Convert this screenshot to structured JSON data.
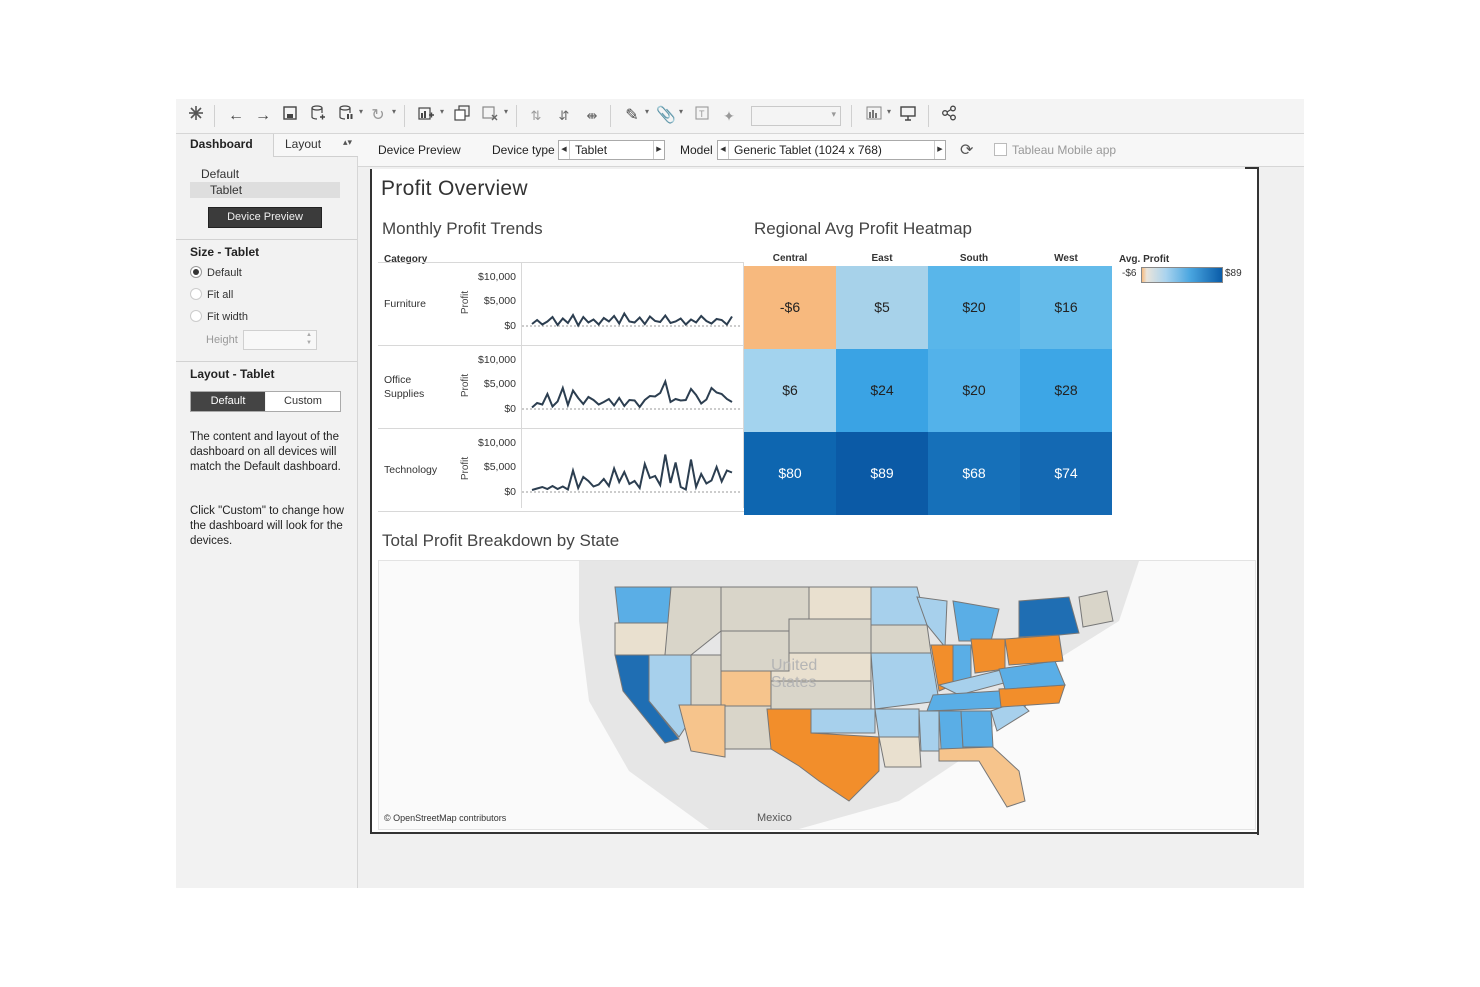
{
  "toolbar": {
    "icons": [
      "tableau-logo-icon",
      "undo-icon",
      "redo-icon",
      "save-icon",
      "new-datasource-icon",
      "pause-icon",
      "refresh-icon",
      "new-worksheet-icon",
      "duplicate-icon",
      "clear-icon",
      "swap-icon",
      "sort-asc-icon",
      "sort-desc-icon",
      "highlight-icon",
      "group-icon",
      "label-icon",
      "pin-icon",
      "fit-combo",
      "show-me-icon",
      "presentation-icon",
      "share-icon"
    ]
  },
  "left_panel": {
    "tabs": {
      "dashboard": "Dashboard",
      "layout": "Layout"
    },
    "devices": {
      "default": "Default",
      "tablet": "Tablet"
    },
    "device_preview_button": "Device Preview",
    "size_title": "Size - Tablet",
    "size_options": [
      "Default",
      "Fit all",
      "Fit width"
    ],
    "size_selected": "Default",
    "height_label": "Height",
    "layout_title": "Layout - Tablet",
    "layout_buttons": {
      "default": "Default",
      "custom": "Custom"
    },
    "help_1": "The content and layout of the dashboard on all devices will match the Default dashboard.",
    "help_2": "Click \"Custom\" to change how the dashboard will look for the devices."
  },
  "device_bar": {
    "title": "Device Preview",
    "device_type_label": "Device type",
    "device_type_value": "Tablet",
    "model_label": "Model",
    "model_value": "Generic Tablet (1024 x 768)",
    "mobile_app_label": "Tableau Mobile app",
    "mobile_app_checked": false
  },
  "dashboard": {
    "title": "Profit Overview",
    "trends_title": "Monthly Profit Trends",
    "heatmap_title": "Regional Avg Profit Heatmap",
    "map_title": "Total Profit Breakdown by State"
  },
  "chart_data": [
    {
      "type": "line",
      "title": "Monthly Profit Trends",
      "row_header": "Category",
      "ylabel": "Profit",
      "y_ticks": [
        "$10,000",
        "$5,000",
        "$0"
      ],
      "ylim": [
        0,
        10000
      ],
      "series": [
        {
          "name": "Furniture",
          "values": [
            400,
            1200,
            300,
            900,
            1800,
            200,
            1500,
            600,
            2200,
            100,
            1800,
            700,
            1300,
            300,
            1600,
            900,
            2000,
            500,
            2500,
            900,
            700,
            1700,
            400,
            1900,
            1000,
            800,
            2100,
            600,
            900,
            1500,
            300,
            1300,
            700,
            2000,
            1000,
            500,
            1400,
            1200,
            300,
            1900
          ]
        },
        {
          "name": "Office Supplies",
          "values": [
            300,
            1200,
            900,
            3000,
            500,
            1500,
            4200,
            800,
            3700,
            2200,
            1000,
            2400,
            1800,
            900,
            1400,
            2000,
            700,
            2200,
            600,
            1800,
            1700,
            400,
            1800,
            2600,
            2500,
            3200,
            5500,
            1400,
            2000,
            1700,
            1800,
            4000,
            2800,
            1100,
            1900,
            4200,
            3300,
            3000,
            2000,
            1400
          ]
        },
        {
          "name": "Technology",
          "values": [
            400,
            700,
            1000,
            600,
            1200,
            600,
            1100,
            500,
            4300,
            800,
            3000,
            2200,
            1100,
            1500,
            2600,
            1200,
            4700,
            2000,
            4000,
            1600,
            2200,
            800,
            5600,
            2800,
            3200,
            1400,
            7500,
            1800,
            5900,
            1000,
            500,
            6500,
            1000,
            3600,
            1700,
            2300,
            5000,
            2100,
            4300,
            3900
          ]
        }
      ]
    },
    {
      "type": "heatmap",
      "title": "Regional Avg Profit Heatmap",
      "columns": [
        "Central",
        "East",
        "South",
        "West"
      ],
      "rows": [
        "Furniture",
        "Office Supplies",
        "Technology"
      ],
      "labels": [
        [
          "-$6",
          "$5",
          "$20",
          "$16"
        ],
        [
          "$6",
          "$24",
          "$20",
          "$28"
        ],
        [
          "$80",
          "$89",
          "$68",
          "$74"
        ]
      ],
      "values": [
        [
          -6,
          5,
          20,
          16
        ],
        [
          6,
          24,
          20,
          28
        ],
        [
          80,
          89,
          68,
          74
        ]
      ],
      "colors": [
        [
          "#f7b97e",
          "#a7d2ea",
          "#59b6ea",
          "#64bbea"
        ],
        [
          "#a3d3ee",
          "#3aa3e4",
          "#53b2ea",
          "#3da6e6"
        ],
        [
          "#0e66b0",
          "#0b5aa6",
          "#1670b9",
          "#1469b3"
        ]
      ],
      "text_colors": [
        [
          "#222",
          "#222",
          "#222",
          "#222"
        ],
        [
          "#222",
          "#222",
          "#222",
          "#222"
        ],
        [
          "#fff",
          "#fff",
          "#fff",
          "#fff"
        ]
      ],
      "legend": {
        "title": "Avg. Profit",
        "min": "-$6",
        "max": "$89"
      }
    }
  ],
  "map": {
    "credit": "© OpenStreetMap contributors",
    "label_mexico": "Mexico",
    "label_us_1": "United",
    "label_us_2": "States",
    "colors": {
      "negative_strong": "#f28e2b",
      "negative_light": "#f6c48c",
      "neutral": "#d9d5c9",
      "neutral_light": "#e9e0cf",
      "positive_light": "#a7d0ec",
      "positive": "#5aaee6",
      "positive_strong": "#1f6eb3"
    }
  }
}
